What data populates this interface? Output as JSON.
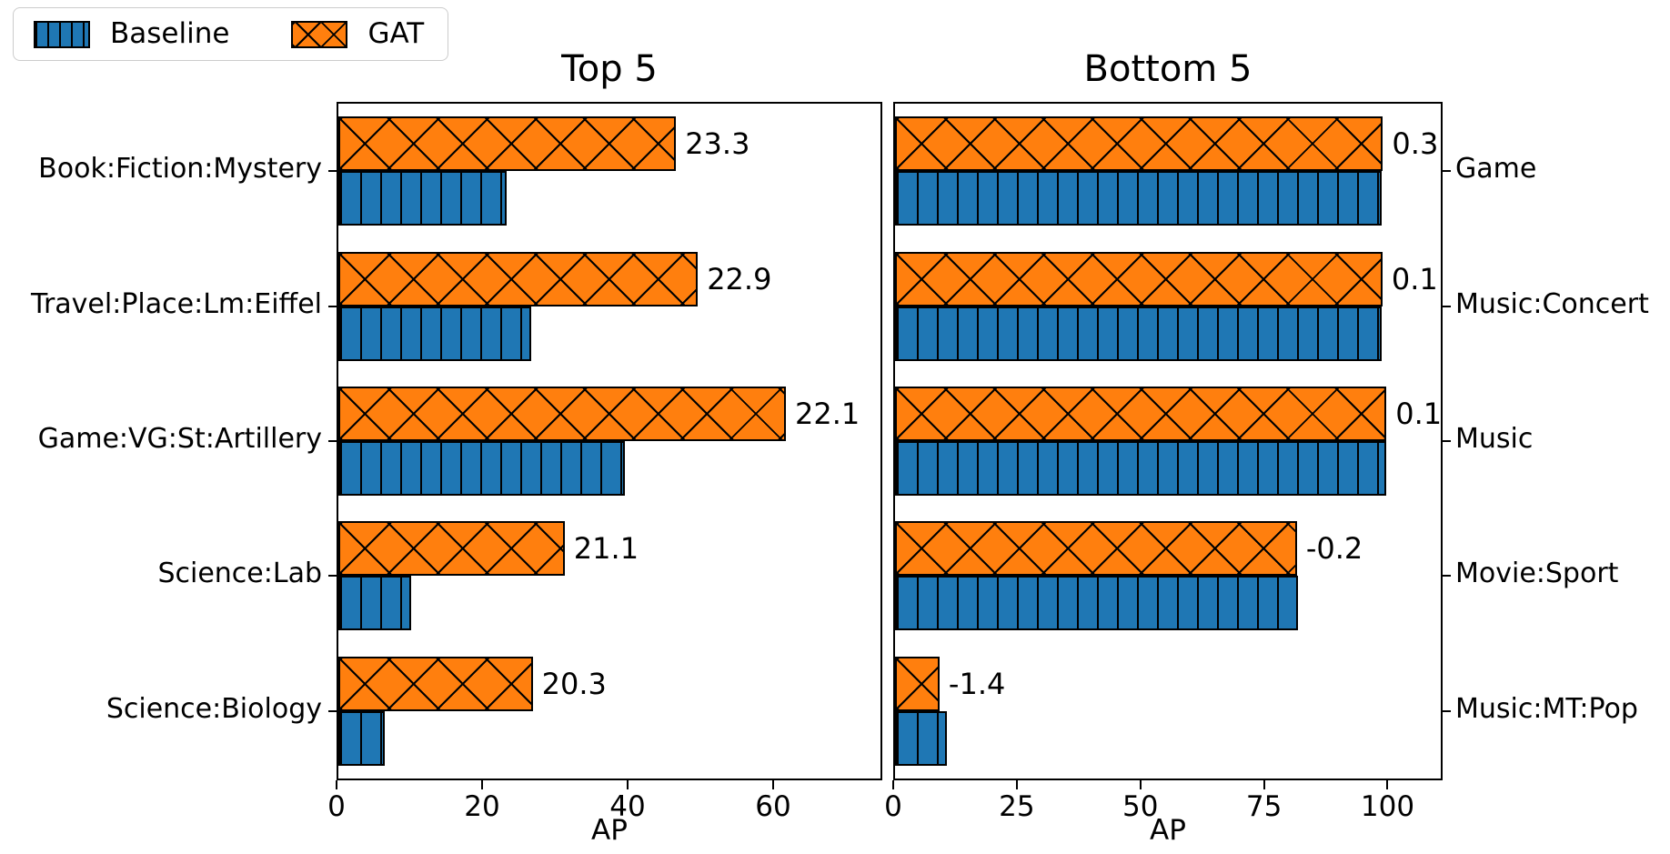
{
  "legend": {
    "items": [
      {
        "label": "Baseline",
        "series": "baseline",
        "swatch": "blue-vertical-hatch"
      },
      {
        "label": "GAT",
        "series": "gat",
        "swatch": "orange-cross-hatch"
      }
    ]
  },
  "colors": {
    "baseline": "#1f77b4",
    "gat": "#ff7f0e",
    "hatch": "#000000",
    "axis": "#000000",
    "legend_border": "#cccccc"
  },
  "chart_data": [
    {
      "type": "bar",
      "orientation": "horizontal",
      "title": "Top 5",
      "xlabel": "AP",
      "ylabel": "",
      "label_side": "left",
      "xlim": [
        0,
        74.5
      ],
      "xticks": [
        0,
        20,
        40,
        60
      ],
      "grid": false,
      "categories": [
        "Book:Fiction:Mystery",
        "Travel:Place:Lm:Eiffel",
        "Game:VG:St:Artillery",
        "Science:Lab",
        "Science:Biology"
      ],
      "series": [
        {
          "name": "Baseline",
          "values": [
            23.1,
            26.5,
            39.4,
            10.0,
            6.4
          ]
        },
        {
          "name": "GAT",
          "values": [
            46.4,
            49.4,
            61.5,
            31.1,
            26.7
          ]
        }
      ],
      "annotations": [
        "23.3",
        "22.9",
        "22.1",
        "21.1",
        "20.3"
      ]
    },
    {
      "type": "bar",
      "orientation": "horizontal",
      "title": "Bottom 5",
      "xlabel": "AP",
      "ylabel": "",
      "label_side": "right",
      "xlim": [
        0,
        110.4
      ],
      "xticks": [
        0,
        25,
        50,
        75,
        100
      ],
      "grid": false,
      "categories": [
        "Game",
        "Music:Concert",
        "Music",
        "Movie:Sport",
        "Music:MT:Pop"
      ],
      "series": [
        {
          "name": "Baseline",
          "values": [
            98.4,
            98.5,
            99.3,
            81.5,
            10.4
          ]
        },
        {
          "name": "GAT",
          "values": [
            98.7,
            98.6,
            99.4,
            81.3,
            9.0
          ]
        }
      ],
      "annotations": [
        "0.3",
        "0.1",
        "0.1",
        "-0.2",
        "-1.4"
      ]
    }
  ],
  "layout_note": "grouped horizontal bar chart, GAT bar above Baseline bar in each category group"
}
